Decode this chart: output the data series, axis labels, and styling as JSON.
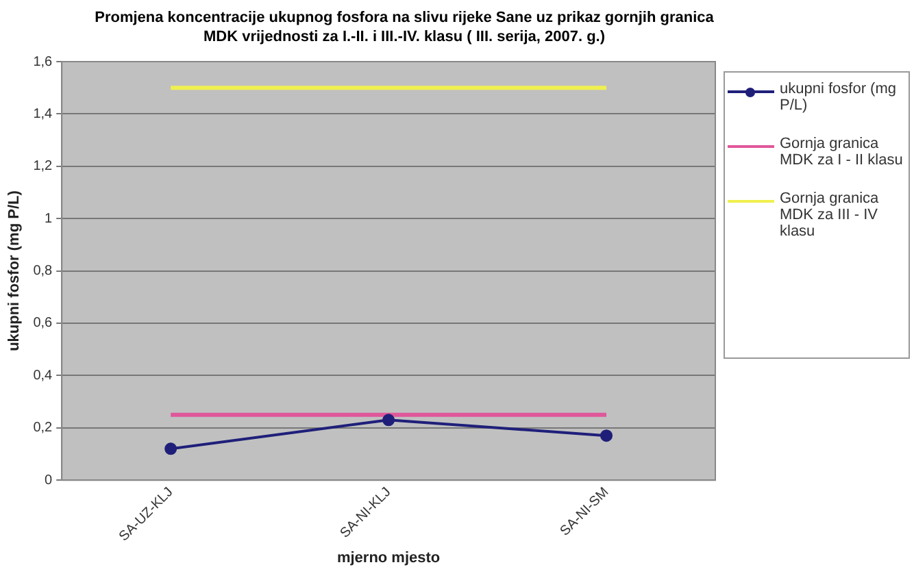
{
  "chart_data": {
    "type": "line",
    "title": "Promjena koncentracije ukupnog fosfora na slivu rijeke Sane uz prikaz gornjih granica MDK vrijednosti za I.-II. i III.-IV. klasu ( III. serija, 2007. g.)",
    "xlabel": "mjerno mjesto",
    "ylabel": "ukupni fosfor (mg P/L)",
    "categories": [
      "SA-UZ-KLJ",
      "SA-NI-KLJ",
      "SA-NI-SM"
    ],
    "series": [
      {
        "name": "ukupni fosfor (mg P/L)",
        "color": "#1f1f7a",
        "values": [
          0.12,
          0.23,
          0.17
        ],
        "marker": "circle"
      },
      {
        "name": "Gornja granica MDK za I - II klasu",
        "color": "#e0579a",
        "values": [
          0.25,
          0.25,
          0.25
        ],
        "marker": "none"
      },
      {
        "name": "Gornja granica MDK za III - IV klasu",
        "color": "#f0f050",
        "values": [
          1.5,
          1.5,
          1.5
        ],
        "marker": "none"
      }
    ],
    "ylim": [
      0,
      1.6
    ],
    "yticks": [
      {
        "value": 0,
        "label": "0"
      },
      {
        "value": 0.2,
        "label": "0,2"
      },
      {
        "value": 0.4,
        "label": "0,4"
      },
      {
        "value": 0.6,
        "label": "0,6"
      },
      {
        "value": 0.8,
        "label": "0,8"
      },
      {
        "value": 1,
        "label": "1"
      },
      {
        "value": 1.2,
        "label": "1,2"
      },
      {
        "value": 1.4,
        "label": "1,4"
      },
      {
        "value": 1.6,
        "label": "1,6"
      }
    ],
    "grid": "y",
    "legend": "right",
    "line_style": "solid"
  }
}
